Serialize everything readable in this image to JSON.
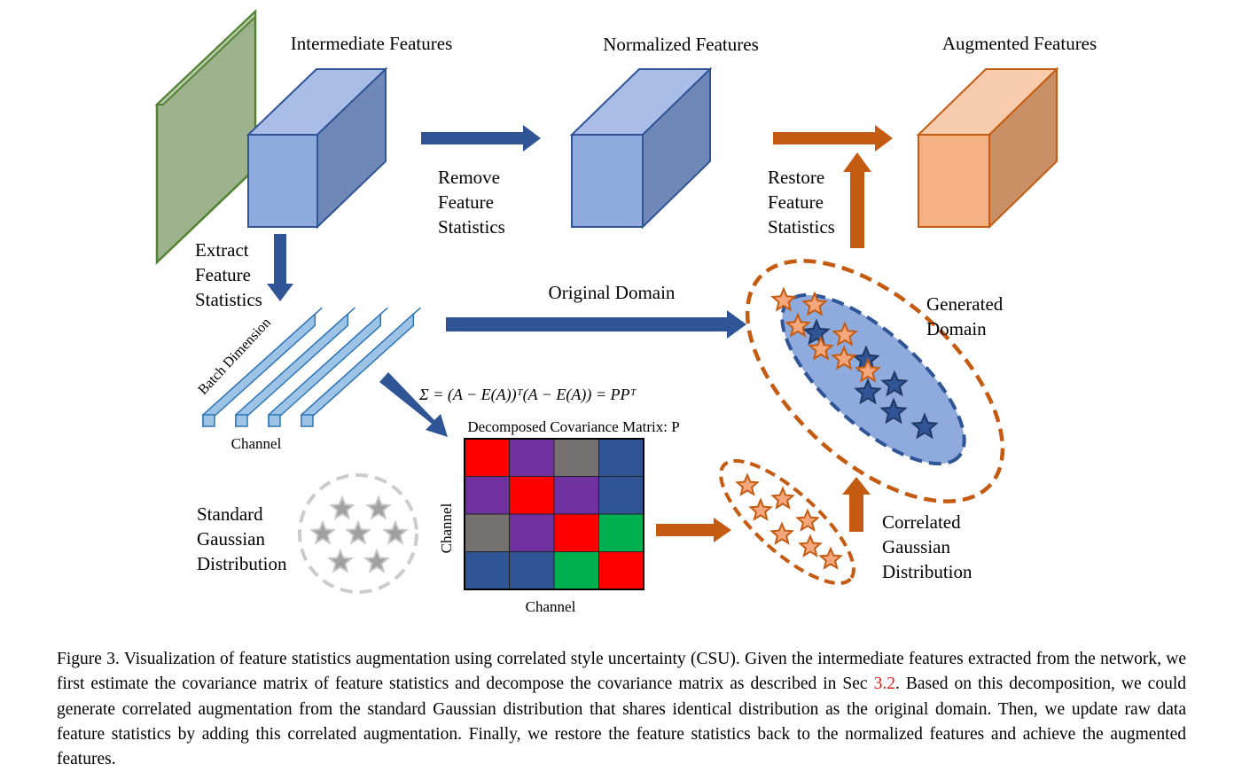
{
  "labels": {
    "intermediate": "Intermediate Features",
    "normalized": "Normalized Features",
    "augmented": "Augmented Features",
    "remove": [
      "Remove",
      "Feature",
      "Statistics"
    ],
    "restore": [
      "Restore",
      "Feature",
      "Statistics"
    ],
    "extract": [
      "Extract",
      "Feature",
      "Statistics"
    ],
    "original_domain": "Original Domain",
    "generated": [
      "Generated",
      "Domain"
    ],
    "batch_dimension": "Batch Dimension",
    "channel_bars": "Channel",
    "formula": "Σ = (A − E(A))ᵀ(A − E(A)) = PPᵀ",
    "matrix_title": "Decomposed Covariance Matrix: P",
    "matrix_ylabel": "Channel",
    "matrix_xlabel": "Channel",
    "standard": [
      "Standard",
      "Gaussian",
      "Distribution"
    ],
    "correlated": [
      "Correlated",
      "Gaussian",
      "Distribution"
    ]
  },
  "matrix": {
    "colors": {
      "red": "#ff0000",
      "purple": "#7030a0",
      "gray": "#767171",
      "blue": "#2f5597",
      "green": "#00b050"
    },
    "cells": [
      [
        "red",
        "purple",
        "gray",
        "blue"
      ],
      [
        "purple",
        "red",
        "purple",
        "blue"
      ],
      [
        "gray",
        "purple",
        "red",
        "green"
      ],
      [
        "blue",
        "blue",
        "green",
        "red"
      ]
    ]
  },
  "colors": {
    "cube_blue_front": "#8faadc",
    "cube_blue_top": "#a9bde6",
    "cube_blue_side": "#6f88b8",
    "cube_orange_front": "#f4b183",
    "cube_orange_top": "#f8cbad",
    "cube_orange_side": "#c99066",
    "panel_green": "#9db38e",
    "arrow_blue": "#2f5597",
    "arrow_orange": "#c55a11",
    "star_orange": "#f4a77c",
    "star_blue": "#2f5597",
    "star_gray": "#a0a0a0"
  },
  "caption": {
    "prefix": "Figure 3. Visualization of feature statistics augmentation using correlated style uncertainty (CSU). Given the intermediate features extracted from the network, we first estimate the covariance matrix of feature statistics and decompose the covariance matrix as described in Sec ",
    "ref": "3.2",
    "suffix": ". Based on this decomposition, we could generate correlated augmentation from the standard Gaussian distribution that shares identical distribution as the original domain. Then, we update raw data feature statistics by adding this correlated augmentation. Finally, we restore the feature statistics back to the normalized features and achieve the augmented features."
  }
}
